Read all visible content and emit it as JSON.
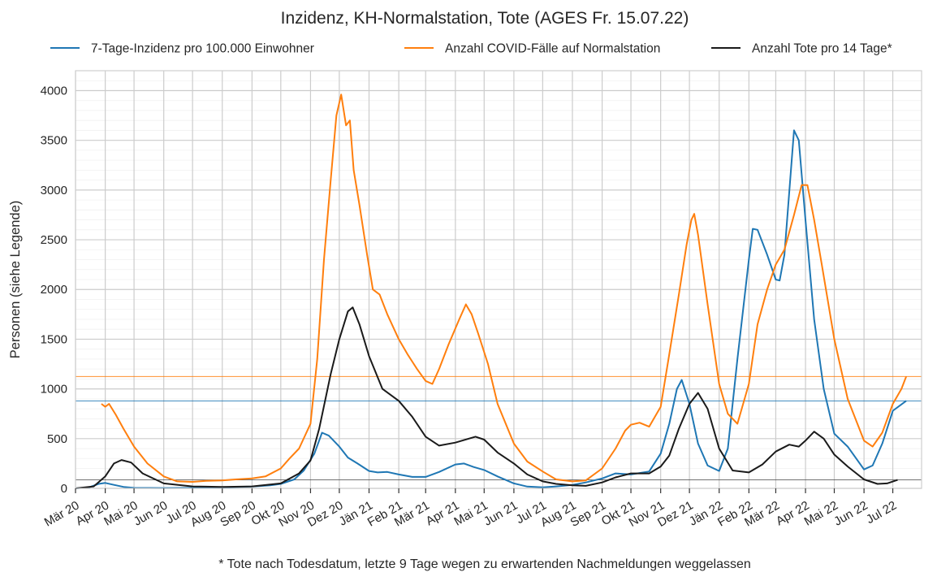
{
  "chart_data": {
    "type": "line",
    "title": "Inzidenz, KH-Normalstation, Tote (AGES Fr. 15.07.22)",
    "ylabel": "Personen (siehe Legende)",
    "xlabel": "",
    "footnote": "* Tote nach Todesdatum, letzte 9 Tage wegen zu erwartenden Nachmeldungen weggelassen",
    "ylim": [
      0,
      4200
    ],
    "yticks": [
      "0",
      "500",
      "1000",
      "1500",
      "2000",
      "2500",
      "3000",
      "3500",
      "4000"
    ],
    "ytick_values": [
      0,
      500,
      1000,
      1500,
      2000,
      2500,
      3000,
      3500,
      4000
    ],
    "x_range": [
      "2020-03-01",
      "2022-07-31"
    ],
    "grid": true,
    "legend_position": "top",
    "xtick_labels": [
      "Mär 20",
      "Apr 20",
      "Mai 20",
      "Jun 20",
      "Jul 20",
      "Aug 20",
      "Sep 20",
      "Okt 20",
      "Nov 20",
      "Dez 20",
      "Jän 21",
      "Feb 21",
      "Mär 21",
      "Apr 21",
      "Mai 21",
      "Jun 21",
      "Jul 21",
      "Aug 21",
      "Sep 21",
      "Okt 21",
      "Nov 21",
      "Dez 21",
      "Jän 22",
      "Feb 22",
      "Mär 22",
      "Apr 22",
      "Mai 22",
      "Jun 22",
      "Jul 22"
    ],
    "xtick_dates": [
      "2020-03-01",
      "2020-04-01",
      "2020-05-01",
      "2020-06-01",
      "2020-07-01",
      "2020-08-01",
      "2020-09-01",
      "2020-10-01",
      "2020-11-01",
      "2020-12-01",
      "2021-01-01",
      "2021-02-01",
      "2021-03-01",
      "2021-04-01",
      "2021-05-01",
      "2021-06-01",
      "2021-07-01",
      "2021-08-01",
      "2021-09-01",
      "2021-10-01",
      "2021-11-01",
      "2021-12-01",
      "2022-01-01",
      "2022-02-01",
      "2022-03-01",
      "2022-04-01",
      "2022-05-01",
      "2022-06-01",
      "2022-07-01"
    ],
    "reference_lines": [
      {
        "color": "#1f77b4",
        "y": 880
      },
      {
        "color": "#ff7f0e",
        "y": 1125
      },
      {
        "color": "#444444",
        "y": 85
      }
    ],
    "series": [
      {
        "name": "7-Tage-Inzidenz pro 100.000 Einwohner",
        "color": "#1f77b4",
        "points": [
          [
            "2020-03-01",
            0
          ],
          [
            "2020-03-15",
            10
          ],
          [
            "2020-03-25",
            45
          ],
          [
            "2020-04-01",
            55
          ],
          [
            "2020-04-10",
            35
          ],
          [
            "2020-04-20",
            15
          ],
          [
            "2020-05-01",
            5
          ],
          [
            "2020-06-01",
            3
          ],
          [
            "2020-07-01",
            5
          ],
          [
            "2020-08-01",
            10
          ],
          [
            "2020-09-01",
            18
          ],
          [
            "2020-09-20",
            30
          ],
          [
            "2020-10-01",
            45
          ],
          [
            "2020-10-15",
            90
          ],
          [
            "2020-10-25",
            180
          ],
          [
            "2020-11-05",
            350
          ],
          [
            "2020-11-13",
            560
          ],
          [
            "2020-11-20",
            530
          ],
          [
            "2020-12-01",
            420
          ],
          [
            "2020-12-10",
            310
          ],
          [
            "2020-12-20",
            250
          ],
          [
            "2021-01-01",
            175
          ],
          [
            "2021-01-10",
            160
          ],
          [
            "2021-01-20",
            165
          ],
          [
            "2021-02-01",
            140
          ],
          [
            "2021-02-15",
            115
          ],
          [
            "2021-03-01",
            115
          ],
          [
            "2021-03-15",
            165
          ],
          [
            "2021-04-01",
            240
          ],
          [
            "2021-04-10",
            250
          ],
          [
            "2021-04-20",
            215
          ],
          [
            "2021-05-01",
            185
          ],
          [
            "2021-05-15",
            120
          ],
          [
            "2021-06-01",
            50
          ],
          [
            "2021-06-15",
            18
          ],
          [
            "2021-07-01",
            10
          ],
          [
            "2021-07-15",
            20
          ],
          [
            "2021-08-01",
            35
          ],
          [
            "2021-08-15",
            60
          ],
          [
            "2021-09-01",
            100
          ],
          [
            "2021-09-15",
            150
          ],
          [
            "2021-10-01",
            140
          ],
          [
            "2021-10-20",
            170
          ],
          [
            "2021-11-01",
            350
          ],
          [
            "2021-11-10",
            650
          ],
          [
            "2021-11-18",
            1000
          ],
          [
            "2021-11-23",
            1090
          ],
          [
            "2021-12-01",
            850
          ],
          [
            "2021-12-10",
            450
          ],
          [
            "2021-12-20",
            230
          ],
          [
            "2022-01-01",
            175
          ],
          [
            "2022-01-10",
            400
          ],
          [
            "2022-01-20",
            1300
          ],
          [
            "2022-02-01",
            2300
          ],
          [
            "2022-02-05",
            2610
          ],
          [
            "2022-02-10",
            2600
          ],
          [
            "2022-02-20",
            2350
          ],
          [
            "2022-03-01",
            2100
          ],
          [
            "2022-03-05",
            2090
          ],
          [
            "2022-03-10",
            2350
          ],
          [
            "2022-03-20",
            3600
          ],
          [
            "2022-03-25",
            3500
          ],
          [
            "2022-04-01",
            2700
          ],
          [
            "2022-04-10",
            1700
          ],
          [
            "2022-04-20",
            1000
          ],
          [
            "2022-05-01",
            550
          ],
          [
            "2022-05-15",
            420
          ],
          [
            "2022-06-01",
            190
          ],
          [
            "2022-06-10",
            230
          ],
          [
            "2022-06-20",
            450
          ],
          [
            "2022-07-01",
            780
          ],
          [
            "2022-07-15",
            880
          ]
        ]
      },
      {
        "name": "Anzahl COVID-Fälle auf Normalstation",
        "color": "#ff7f0e",
        "points": [
          [
            "2020-03-28",
            850
          ],
          [
            "2020-04-01",
            820
          ],
          [
            "2020-04-05",
            850
          ],
          [
            "2020-04-12",
            740
          ],
          [
            "2020-04-20",
            600
          ],
          [
            "2020-05-01",
            420
          ],
          [
            "2020-05-15",
            250
          ],
          [
            "2020-06-01",
            120
          ],
          [
            "2020-06-15",
            70
          ],
          [
            "2020-07-01",
            65
          ],
          [
            "2020-07-15",
            75
          ],
          [
            "2020-08-01",
            80
          ],
          [
            "2020-08-15",
            90
          ],
          [
            "2020-09-01",
            100
          ],
          [
            "2020-09-15",
            120
          ],
          [
            "2020-10-01",
            200
          ],
          [
            "2020-10-10",
            300
          ],
          [
            "2020-10-20",
            400
          ],
          [
            "2020-11-01",
            650
          ],
          [
            "2020-11-08",
            1300
          ],
          [
            "2020-11-15",
            2300
          ],
          [
            "2020-11-22",
            3100
          ],
          [
            "2020-11-28",
            3750
          ],
          [
            "2020-12-03",
            3960
          ],
          [
            "2020-12-08",
            3650
          ],
          [
            "2020-12-12",
            3700
          ],
          [
            "2020-12-16",
            3200
          ],
          [
            "2020-12-22",
            2850
          ],
          [
            "2020-12-30",
            2350
          ],
          [
            "2021-01-05",
            2000
          ],
          [
            "2021-01-12",
            1950
          ],
          [
            "2021-01-20",
            1750
          ],
          [
            "2021-02-01",
            1500
          ],
          [
            "2021-02-10",
            1350
          ],
          [
            "2021-02-20",
            1200
          ],
          [
            "2021-03-01",
            1080
          ],
          [
            "2021-03-08",
            1050
          ],
          [
            "2021-03-15",
            1200
          ],
          [
            "2021-03-25",
            1450
          ],
          [
            "2021-04-05",
            1700
          ],
          [
            "2021-04-12",
            1850
          ],
          [
            "2021-04-18",
            1750
          ],
          [
            "2021-04-25",
            1550
          ],
          [
            "2021-05-05",
            1250
          ],
          [
            "2021-05-15",
            850
          ],
          [
            "2021-06-01",
            450
          ],
          [
            "2021-06-15",
            270
          ],
          [
            "2021-07-01",
            170
          ],
          [
            "2021-07-15",
            90
          ],
          [
            "2021-08-01",
            70
          ],
          [
            "2021-08-15",
            80
          ],
          [
            "2021-09-01",
            200
          ],
          [
            "2021-09-15",
            400
          ],
          [
            "2021-09-25",
            580
          ],
          [
            "2021-10-01",
            640
          ],
          [
            "2021-10-10",
            660
          ],
          [
            "2021-10-20",
            620
          ],
          [
            "2021-11-01",
            820
          ],
          [
            "2021-11-10",
            1350
          ],
          [
            "2021-11-20",
            1950
          ],
          [
            "2021-11-28",
            2450
          ],
          [
            "2021-12-03",
            2700
          ],
          [
            "2021-12-06",
            2760
          ],
          [
            "2021-12-10",
            2550
          ],
          [
            "2021-12-20",
            1850
          ],
          [
            "2022-01-01",
            1050
          ],
          [
            "2022-01-10",
            750
          ],
          [
            "2022-01-20",
            650
          ],
          [
            "2022-02-01",
            1050
          ],
          [
            "2022-02-10",
            1650
          ],
          [
            "2022-02-20",
            2000
          ],
          [
            "2022-03-01",
            2250
          ],
          [
            "2022-03-10",
            2400
          ],
          [
            "2022-03-20",
            2750
          ],
          [
            "2022-03-28",
            3050
          ],
          [
            "2022-04-03",
            3050
          ],
          [
            "2022-04-10",
            2700
          ],
          [
            "2022-04-18",
            2250
          ],
          [
            "2022-05-01",
            1500
          ],
          [
            "2022-05-15",
            900
          ],
          [
            "2022-06-01",
            480
          ],
          [
            "2022-06-10",
            420
          ],
          [
            "2022-06-20",
            560
          ],
          [
            "2022-07-01",
            850
          ],
          [
            "2022-07-10",
            1000
          ],
          [
            "2022-07-15",
            1125
          ]
        ]
      },
      {
        "name": "Anzahl Tote pro 14 Tage*",
        "color": "#1a1a1a",
        "points": [
          [
            "2020-03-01",
            0
          ],
          [
            "2020-03-20",
            20
          ],
          [
            "2020-04-01",
            120
          ],
          [
            "2020-04-10",
            250
          ],
          [
            "2020-04-18",
            285
          ],
          [
            "2020-04-28",
            260
          ],
          [
            "2020-05-10",
            150
          ],
          [
            "2020-06-01",
            50
          ],
          [
            "2020-07-01",
            20
          ],
          [
            "2020-08-01",
            15
          ],
          [
            "2020-09-01",
            20
          ],
          [
            "2020-10-01",
            50
          ],
          [
            "2020-10-20",
            150
          ],
          [
            "2020-11-01",
            280
          ],
          [
            "2020-11-10",
            600
          ],
          [
            "2020-11-22",
            1150
          ],
          [
            "2020-12-01",
            1500
          ],
          [
            "2020-12-10",
            1780
          ],
          [
            "2020-12-15",
            1820
          ],
          [
            "2020-12-22",
            1650
          ],
          [
            "2021-01-01",
            1330
          ],
          [
            "2021-01-15",
            1000
          ],
          [
            "2021-02-01",
            880
          ],
          [
            "2021-02-15",
            720
          ],
          [
            "2021-03-01",
            520
          ],
          [
            "2021-03-15",
            430
          ],
          [
            "2021-04-01",
            460
          ],
          [
            "2021-04-15",
            500
          ],
          [
            "2021-04-22",
            520
          ],
          [
            "2021-05-01",
            490
          ],
          [
            "2021-05-15",
            360
          ],
          [
            "2021-06-01",
            250
          ],
          [
            "2021-06-15",
            140
          ],
          [
            "2021-07-01",
            70
          ],
          [
            "2021-07-15",
            45
          ],
          [
            "2021-08-01",
            30
          ],
          [
            "2021-08-15",
            25
          ],
          [
            "2021-09-01",
            60
          ],
          [
            "2021-09-15",
            110
          ],
          [
            "2021-10-01",
            150
          ],
          [
            "2021-10-20",
            150
          ],
          [
            "2021-11-01",
            220
          ],
          [
            "2021-11-10",
            330
          ],
          [
            "2021-11-20",
            600
          ],
          [
            "2021-12-01",
            850
          ],
          [
            "2021-12-10",
            960
          ],
          [
            "2021-12-20",
            800
          ],
          [
            "2022-01-01",
            400
          ],
          [
            "2022-01-15",
            180
          ],
          [
            "2022-02-01",
            160
          ],
          [
            "2022-02-15",
            240
          ],
          [
            "2022-03-01",
            370
          ],
          [
            "2022-03-15",
            440
          ],
          [
            "2022-03-25",
            420
          ],
          [
            "2022-04-01",
            480
          ],
          [
            "2022-04-10",
            570
          ],
          [
            "2022-04-20",
            500
          ],
          [
            "2022-05-01",
            340
          ],
          [
            "2022-05-15",
            220
          ],
          [
            "2022-06-01",
            90
          ],
          [
            "2022-06-15",
            45
          ],
          [
            "2022-06-25",
            50
          ],
          [
            "2022-07-06",
            85
          ]
        ]
      }
    ]
  }
}
